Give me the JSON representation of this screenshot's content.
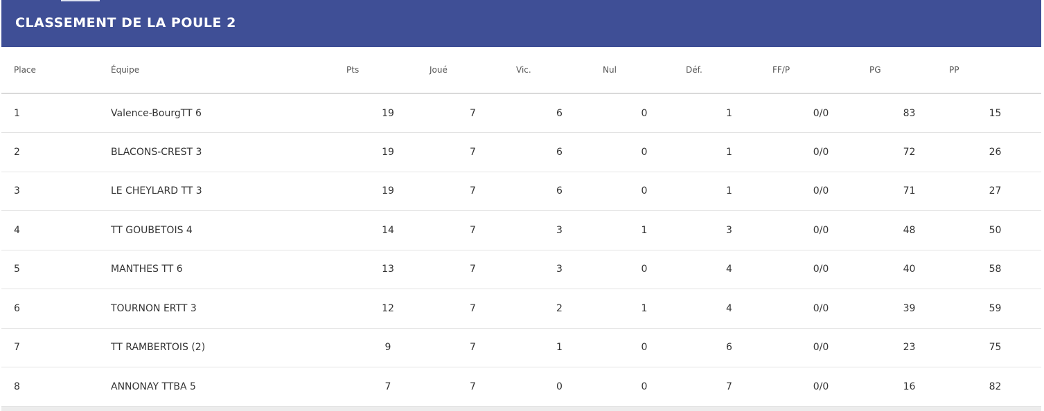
{
  "header": {
    "title": "CLASSEMENT DE LA POULE 2"
  },
  "table": {
    "columns": [
      "Place",
      "Équipe",
      "Pts",
      "Joué",
      "Vic.",
      "Nul",
      "Déf.",
      "FF/P",
      "PG",
      "PP"
    ],
    "rows": [
      [
        "1",
        "Valence-BourgTT 6",
        "19",
        "7",
        "6",
        "0",
        "1",
        "0/0",
        "83",
        "15"
      ],
      [
        "2",
        "BLACONS-CREST 3",
        "19",
        "7",
        "6",
        "0",
        "1",
        "0/0",
        "72",
        "26"
      ],
      [
        "3",
        "LE CHEYLARD TT 3",
        "19",
        "7",
        "6",
        "0",
        "1",
        "0/0",
        "71",
        "27"
      ],
      [
        "4",
        "TT GOUBETOIS 4",
        "14",
        "7",
        "3",
        "1",
        "3",
        "0/0",
        "48",
        "50"
      ],
      [
        "5",
        "MANTHES TT 6",
        "13",
        "7",
        "3",
        "0",
        "4",
        "0/0",
        "40",
        "58"
      ],
      [
        "6",
        "TOURNON ERTT 3",
        "12",
        "7",
        "2",
        "1",
        "4",
        "0/0",
        "39",
        "59"
      ],
      [
        "7",
        "TT RAMBERTOIS (2)",
        "9",
        "7",
        "1",
        "0",
        "6",
        "0/0",
        "23",
        "75"
      ],
      [
        "8",
        "ANNONAY TTBA 5",
        "7",
        "7",
        "0",
        "0",
        "7",
        "0/0",
        "16",
        "82"
      ]
    ]
  }
}
